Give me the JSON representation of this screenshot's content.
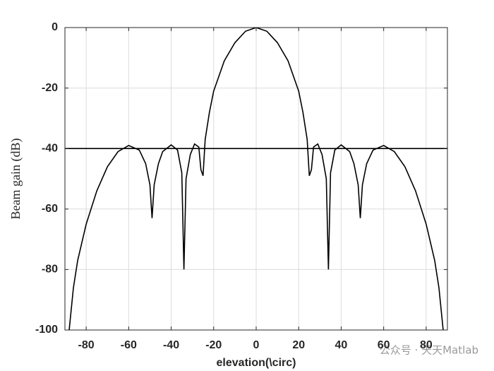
{
  "chart_data": {
    "type": "line",
    "xlabel": "elevation(\\circ)",
    "ylabel": "Beam gain (dB)",
    "annotation": "公众号 · 天天Matlab",
    "xlim": [
      -90,
      90
    ],
    "xticks": [
      -80,
      -60,
      -40,
      -20,
      0,
      20,
      40,
      60,
      80
    ],
    "ylim": [
      -100,
      0
    ],
    "yticks": [
      -100,
      -80,
      -60,
      -40,
      -20,
      0
    ],
    "grid": true,
    "series": [
      {
        "color": "#000000",
        "x": [
          -88,
          -86,
          -84,
          -80,
          -75,
          -70,
          -65,
          -60,
          -55,
          -52,
          -50,
          -49,
          -48,
          -46,
          -44,
          -40,
          -37,
          -35,
          -34,
          -33,
          -31,
          -29,
          -27,
          -26,
          -25,
          -24,
          -22,
          -20,
          -15,
          -10,
          -5,
          0,
          5,
          10,
          15,
          20,
          22,
          24,
          25,
          26,
          27,
          29,
          31,
          33,
          34,
          35,
          37,
          40,
          44,
          46,
          48,
          49,
          50,
          52,
          55,
          60,
          65,
          70,
          75,
          80,
          84,
          86,
          88
        ],
        "values": [
          -100,
          -86,
          -77,
          -65,
          -54,
          -46,
          -41,
          -39,
          -40.5,
          -45,
          -52,
          -63,
          -52,
          -45,
          -41,
          -38.8,
          -40.5,
          -48,
          -80,
          -50,
          -42,
          -38.5,
          -39.5,
          -47,
          -49,
          -37,
          -28,
          -21,
          -11,
          -5,
          -1.2,
          0,
          -1.2,
          -5,
          -11,
          -21,
          -28,
          -37,
          -49,
          -47,
          -39.5,
          -38.5,
          -42,
          -50,
          -80,
          -48,
          -40.5,
          -38.8,
          -41,
          -45,
          -52,
          -63,
          -52,
          -45,
          -40.5,
          -39,
          -41,
          -46,
          -54,
          -65,
          -77,
          -86,
          -100
        ]
      },
      {
        "color": "#000000",
        "x": [
          -90,
          90
        ],
        "values": [
          -40,
          -40
        ]
      }
    ]
  }
}
